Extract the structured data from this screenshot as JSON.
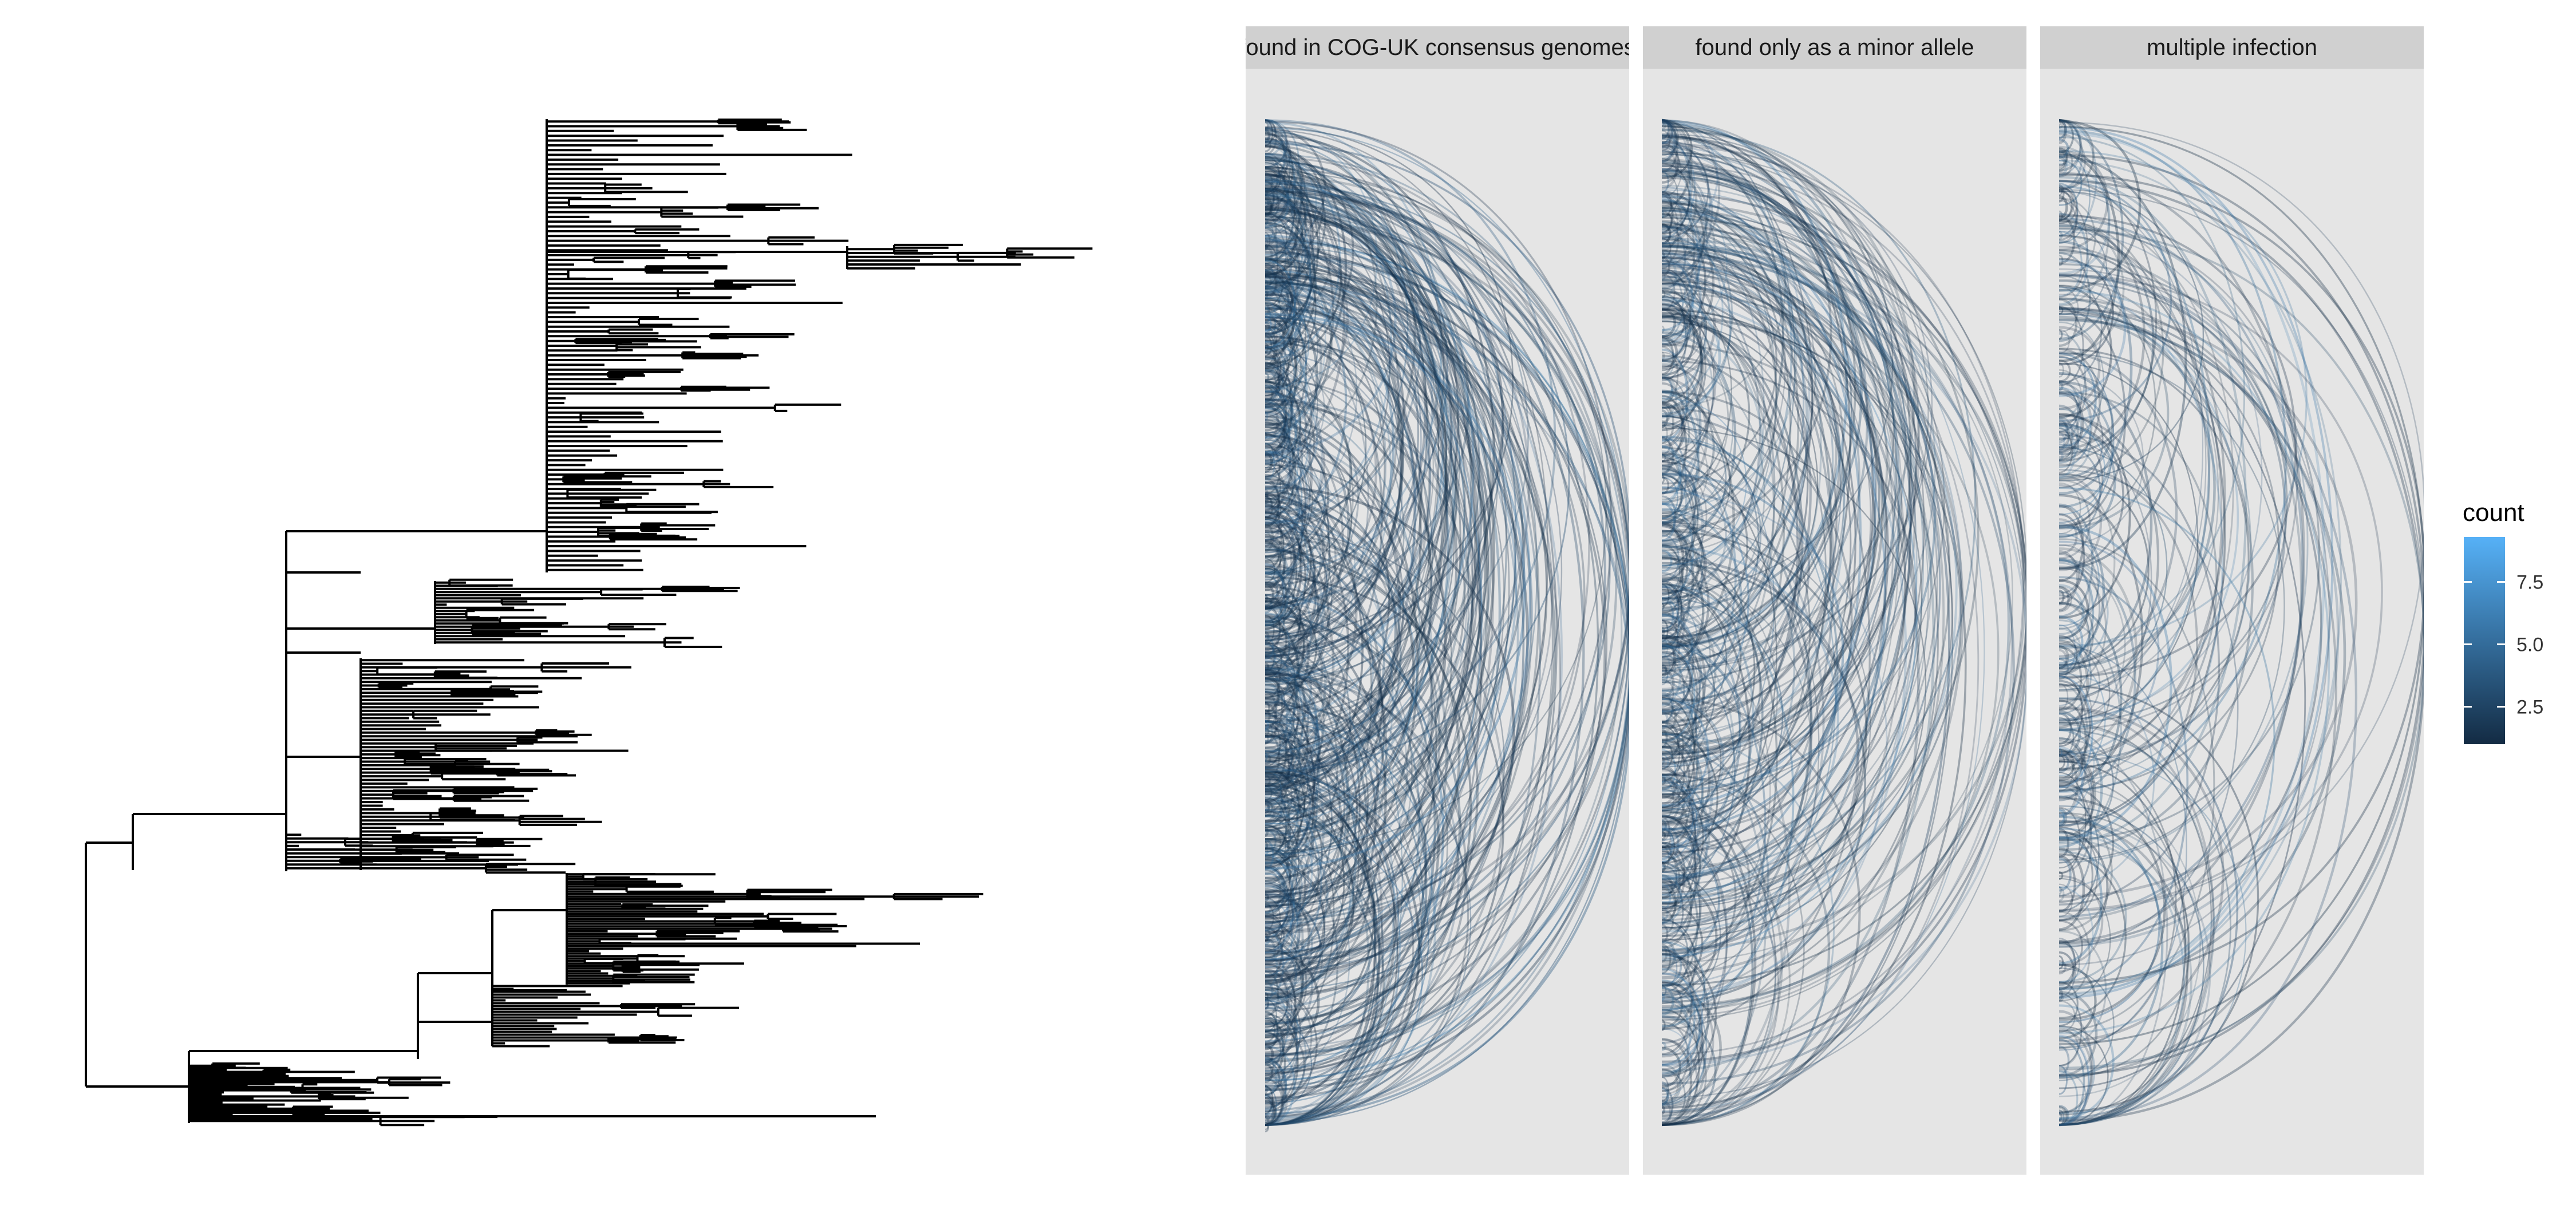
{
  "colors": {
    "background": "#ffffff",
    "panel_background": "#e5e5e5",
    "strip_background": "#d0d0d0",
    "tree_line": "#000000",
    "arc_low": "#132b43",
    "arc_high": "#56b1f7"
  },
  "chart_data": [
    {
      "type": "tree",
      "title": "",
      "xlabel": "",
      "ylabel": "",
      "notes": "Phylogenetic tree drawn with black rectangular branches; individual leaf names are not printed."
    },
    {
      "type": "arc",
      "title": "",
      "xlabel": "",
      "ylabel": "",
      "facets": [
        {
          "label": "found in COG-UK consensus genomes",
          "density": 1.0
        },
        {
          "label": "found only as a minor allele",
          "density": 0.7
        },
        {
          "label": "multiple infection",
          "density": 0.45
        }
      ],
      "legend": {
        "title": "count",
        "position": "right",
        "ticks": [
          "2.5",
          "5.0",
          "7.5"
        ],
        "tick_values": [
          2.5,
          5.0,
          7.5
        ],
        "range": [
          1,
          9.3
        ]
      }
    }
  ]
}
